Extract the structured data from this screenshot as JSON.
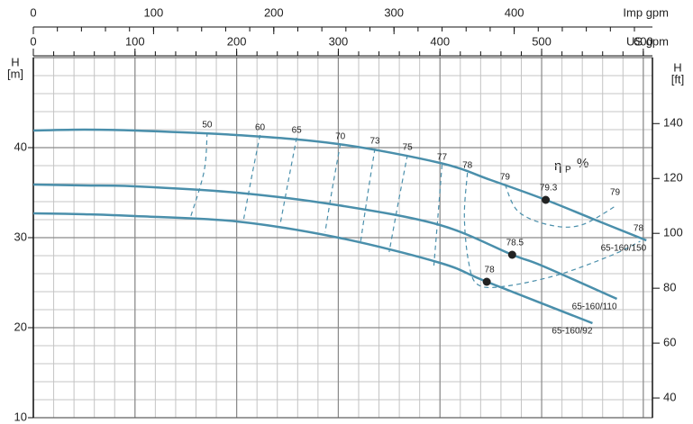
{
  "chart_data": {
    "type": "line",
    "x_axis_label": "US gpm",
    "x2_axis_label": "Imp gpm",
    "y_axis_label": "H",
    "y_axis_unit": "[m]",
    "y2_axis_label": "H",
    "y2_axis_unit": "[ft]",
    "xlim": [
      0,
      609
    ],
    "xticks": [
      0,
      100,
      200,
      300,
      400,
      500,
      600
    ],
    "xminorticks": [
      0,
      20,
      40,
      60,
      80,
      100,
      120,
      140,
      160,
      180,
      200,
      220,
      240,
      260,
      280,
      300,
      320,
      340,
      360,
      380,
      400,
      420,
      440,
      460,
      480,
      500,
      520,
      540,
      560,
      580,
      600
    ],
    "x2lim": [
      0,
      515
    ],
    "x2ticks": [
      0,
      100,
      200,
      300,
      400
    ],
    "x2minorticks": [
      0,
      20,
      40,
      60,
      80,
      100,
      120,
      140,
      160,
      180,
      200,
      220,
      240,
      260,
      280,
      300,
      320,
      340,
      360,
      380,
      400,
      420,
      440,
      460,
      480,
      500
    ],
    "ylim": [
      10,
      50
    ],
    "yticks": [
      10,
      20,
      30,
      40
    ],
    "yminorticks": [
      10,
      12,
      14,
      16,
      18,
      20,
      22,
      24,
      26,
      28,
      30,
      32,
      34,
      36,
      38,
      40,
      42,
      44,
      46,
      48,
      50
    ],
    "y2lim": [
      32.81,
      164.04
    ],
    "y2ticks": [
      40,
      60,
      80,
      100,
      120,
      140
    ],
    "grid": true,
    "series": [
      {
        "name": "65-160/150",
        "color": "#4a8fab",
        "x": [
          0,
          50,
          100,
          200,
          300,
          400,
          450,
          504,
          550,
          603
        ],
        "values": [
          41.9,
          42.0,
          41.9,
          41.4,
          40.4,
          38.3,
          36.4,
          34.2,
          32.1,
          29.7
        ],
        "best_point": {
          "x": 504,
          "value": 34.2,
          "efficiency": 79.3
        }
      },
      {
        "name": "65-160/110",
        "color": "#4a8fab",
        "x": [
          0,
          50,
          100,
          200,
          300,
          400,
          471,
          500,
          574
        ],
        "values": [
          35.9,
          35.8,
          35.7,
          35.0,
          33.6,
          31.4,
          28.1,
          26.9,
          23.2
        ],
        "best_point": {
          "x": 471,
          "value": 28.1,
          "efficiency": 78.5
        }
      },
      {
        "name": "65-160/92",
        "color": "#4a8fab",
        "x": [
          0,
          50,
          100,
          200,
          300,
          400,
          446,
          550
        ],
        "values": [
          32.7,
          32.6,
          32.4,
          31.8,
          30.0,
          27.2,
          25.1,
          20.5
        ],
        "best_point": {
          "x": 446,
          "value": 25.1,
          "efficiency": 78
        }
      }
    ],
    "efficiency_symbol": "η",
    "efficiency_subscript": "P",
    "efficiency_unit": "%",
    "efficiency_contours": [
      {
        "efficiency": 50,
        "x": [
          171,
          168,
          155
        ],
        "values": [
          41.7,
          37.4,
          32.4
        ]
      },
      {
        "efficiency": 60,
        "x": [
          223,
          215,
          207
        ],
        "values": [
          41.4,
          36.9,
          32.1
        ]
      },
      {
        "efficiency": 65,
        "x": [
          259,
          251,
          243
        ],
        "values": [
          41.1,
          36.4,
          31.6
        ]
      },
      {
        "efficiency": 70,
        "x": [
          302,
          294,
          287
        ],
        "values": [
          40.4,
          35.4,
          30.6
        ]
      },
      {
        "efficiency": 73,
        "x": [
          336,
          329,
          322
        ],
        "values": [
          39.9,
          34.9,
          29.6
        ]
      },
      {
        "efficiency": 75,
        "x": [
          368,
          359,
          350
        ],
        "values": [
          39.2,
          33.9,
          28.4
        ]
      },
      {
        "efficiency": 77,
        "x": [
          402,
          398,
          394
        ],
        "values": [
          38.1,
          32.4,
          26.9
        ]
      },
      {
        "efficiency": 78,
        "x": [
          427,
          424,
          428,
          437,
          464,
          517,
          570,
          597
        ],
        "values": [
          37.2,
          32.4,
          27.4,
          24.8,
          24.6,
          25.9,
          28.1,
          29.6
        ]
      },
      {
        "efficiency": 79,
        "x": [
          464,
          477,
          508,
          539,
          574
        ],
        "values": [
          35.9,
          32.9,
          31.4,
          31.4,
          33.6
        ]
      }
    ]
  }
}
